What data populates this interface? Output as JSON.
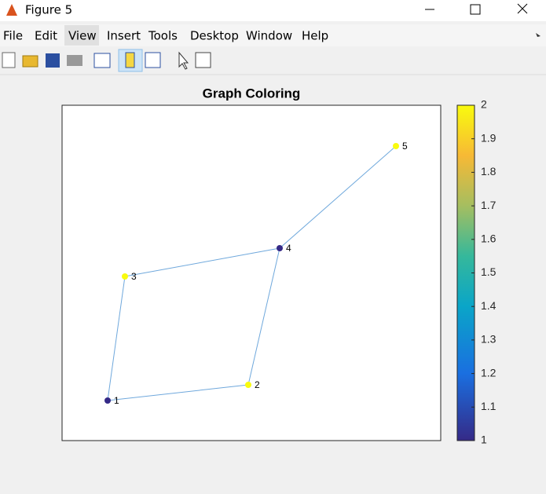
{
  "window": {
    "title": "Figure 5",
    "menu": [
      "File",
      "Edit",
      "View",
      "Insert",
      "Tools",
      "Desktop",
      "Window",
      "Help"
    ]
  },
  "figure": {
    "title": "Graph Coloring",
    "nodes": [
      {
        "label": "1",
        "color_value": 1
      },
      {
        "label": "2",
        "color_value": 2
      },
      {
        "label": "3",
        "color_value": 2
      },
      {
        "label": "4",
        "color_value": 1
      },
      {
        "label": "5",
        "color_value": 2
      }
    ],
    "edges": [
      [
        0,
        1
      ],
      [
        0,
        2
      ],
      [
        1,
        3
      ],
      [
        2,
        3
      ],
      [
        3,
        4
      ]
    ],
    "colorbar": {
      "clim": [
        1,
        2
      ],
      "ticks": [
        1,
        1.1,
        1.2,
        1.3,
        1.4,
        1.5,
        1.6,
        1.7,
        1.8,
        1.9,
        2
      ]
    }
  }
}
